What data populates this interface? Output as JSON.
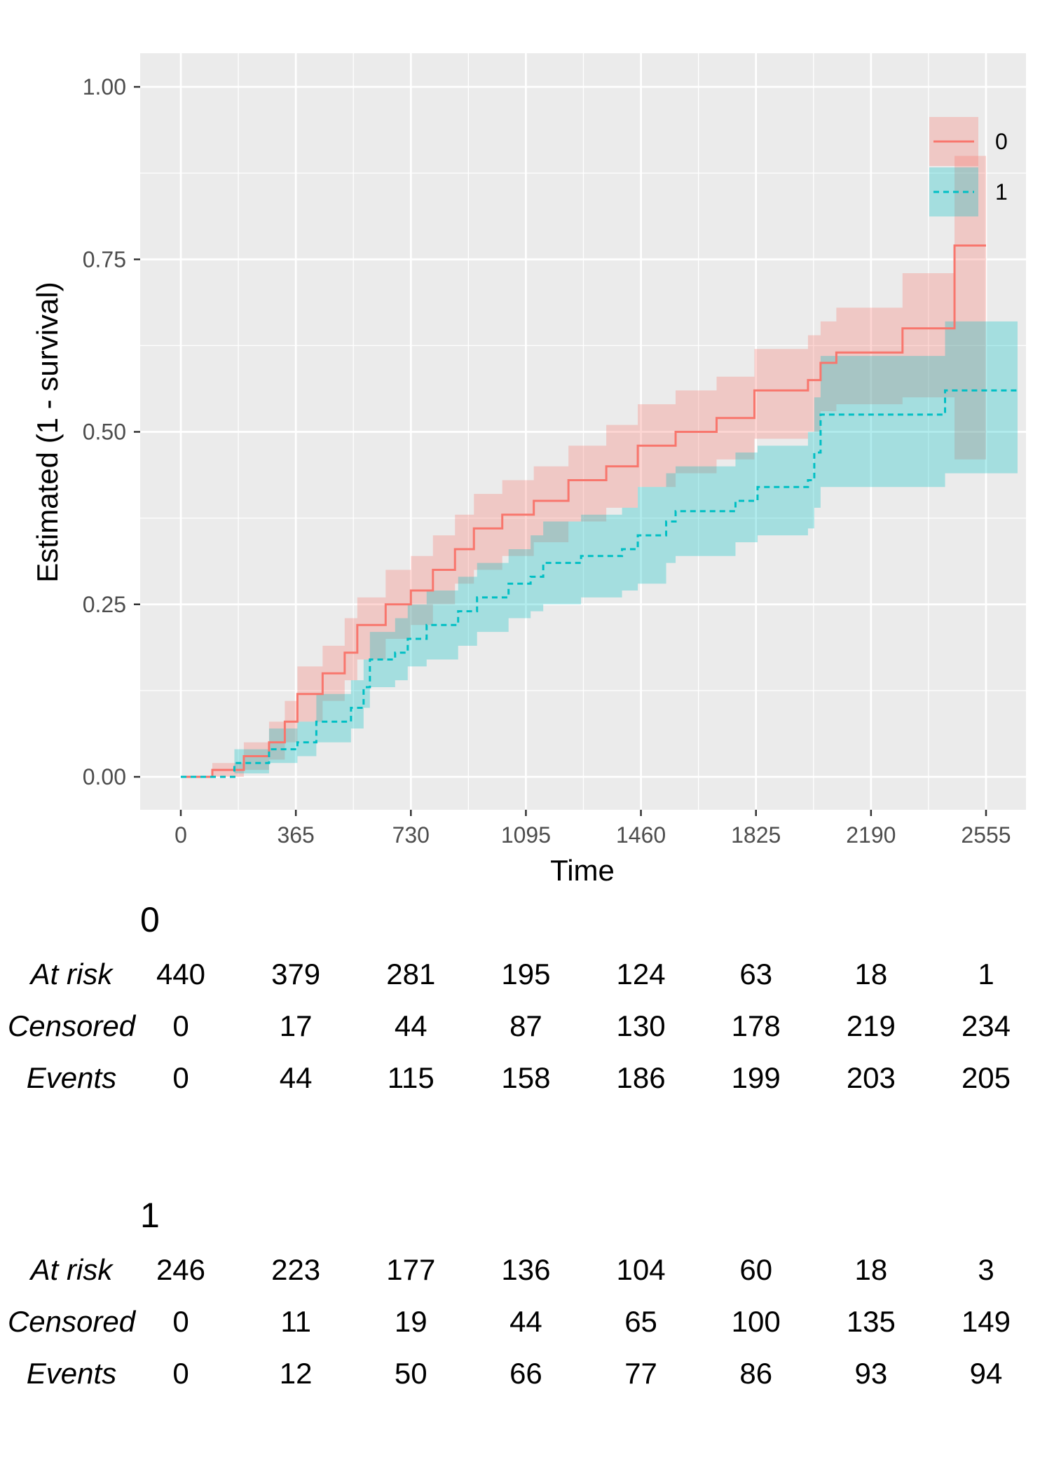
{
  "chart_data": {
    "type": "line",
    "subtype": "kaplan-meier cumulative incidence (step) with confidence ribbons",
    "xlabel": "Time",
    "ylabel": "Estimated (1 - survival)",
    "xlim": [
      -100,
      2690
    ],
    "ylim": [
      -0.05,
      1.05
    ],
    "x_ticks": [
      0,
      365,
      730,
      1095,
      1460,
      1825,
      2190,
      2555
    ],
    "x_tick_labels": [
      "0",
      "365",
      "730",
      "1095",
      "1460",
      "1825",
      "2190",
      "2555"
    ],
    "y_ticks": [
      0,
      0.25,
      0.5,
      0.75,
      1.0
    ],
    "y_tick_labels": [
      "0.00",
      "0.25",
      "0.50",
      "0.75",
      "1.00"
    ],
    "grid": true,
    "background": "#EBEBEB",
    "legend_position": "top-right",
    "series": [
      {
        "name": "0",
        "color": "#F8766D",
        "linetype": "solid",
        "end_time": 2555,
        "time": [
          0,
          100,
          200,
          280,
          330,
          370,
          450,
          520,
          560,
          650,
          730,
          800,
          870,
          930,
          1020,
          1120,
          1230,
          1350,
          1450,
          1570,
          1700,
          1820,
          1990,
          2030,
          2080,
          2290,
          2455
        ],
        "estimate": [
          0,
          0.01,
          0.03,
          0.05,
          0.08,
          0.12,
          0.15,
          0.18,
          0.22,
          0.25,
          0.27,
          0.3,
          0.33,
          0.36,
          0.38,
          0.4,
          0.43,
          0.45,
          0.48,
          0.5,
          0.52,
          0.56,
          0.575,
          0.6,
          0.615,
          0.65,
          0.77
        ],
        "lower": [
          0,
          0,
          0.01,
          0.025,
          0.05,
          0.08,
          0.11,
          0.14,
          0.17,
          0.2,
          0.22,
          0.25,
          0.28,
          0.3,
          0.32,
          0.34,
          0.37,
          0.39,
          0.42,
          0.44,
          0.46,
          0.49,
          0.5,
          0.53,
          0.54,
          0.55,
          0.46
        ],
        "upper": [
          0,
          0.02,
          0.05,
          0.08,
          0.11,
          0.16,
          0.19,
          0.23,
          0.26,
          0.3,
          0.32,
          0.35,
          0.38,
          0.41,
          0.43,
          0.45,
          0.48,
          0.51,
          0.54,
          0.56,
          0.58,
          0.62,
          0.64,
          0.66,
          0.68,
          0.73,
          0.9
        ]
      },
      {
        "name": "1",
        "color": "#00BFC4",
        "linetype": "dashed",
        "end_time": 2655,
        "time": [
          0,
          170,
          280,
          370,
          430,
          540,
          580,
          600,
          680,
          720,
          780,
          880,
          940,
          1040,
          1110,
          1150,
          1270,
          1400,
          1450,
          1540,
          1570,
          1760,
          1830,
          1990,
          2010,
          2030,
          2425
        ],
        "estimate": [
          0,
          0.02,
          0.04,
          0.05,
          0.08,
          0.1,
          0.13,
          0.17,
          0.18,
          0.2,
          0.22,
          0.24,
          0.26,
          0.28,
          0.29,
          0.31,
          0.32,
          0.33,
          0.35,
          0.37,
          0.385,
          0.4,
          0.42,
          0.43,
          0.47,
          0.525,
          0.56
        ],
        "lower": [
          0,
          0.005,
          0.02,
          0.03,
          0.05,
          0.07,
          0.1,
          0.13,
          0.14,
          0.16,
          0.17,
          0.19,
          0.21,
          0.23,
          0.24,
          0.25,
          0.26,
          0.27,
          0.28,
          0.31,
          0.32,
          0.34,
          0.35,
          0.36,
          0.39,
          0.42,
          0.44
        ],
        "upper": [
          0,
          0.04,
          0.07,
          0.08,
          0.12,
          0.14,
          0.17,
          0.21,
          0.23,
          0.25,
          0.27,
          0.29,
          0.31,
          0.33,
          0.35,
          0.37,
          0.38,
          0.39,
          0.42,
          0.44,
          0.45,
          0.47,
          0.48,
          0.5,
          0.55,
          0.61,
          0.66
        ]
      }
    ],
    "risk_table": {
      "row_labels": [
        "At risk",
        "Censored",
        "Events"
      ],
      "groups": [
        {
          "name": "0",
          "rows": [
            [
              "440",
              "379",
              "281",
              "195",
              "124",
              "63",
              "18",
              "1"
            ],
            [
              "0",
              "17",
              "44",
              "87",
              "130",
              "178",
              "219",
              "234"
            ],
            [
              "0",
              "44",
              "115",
              "158",
              "186",
              "199",
              "203",
              "205"
            ]
          ]
        },
        {
          "name": "1",
          "rows": [
            [
              "246",
              "223",
              "177",
              "136",
              "104",
              "60",
              "18",
              "3"
            ],
            [
              "0",
              "11",
              "19",
              "44",
              "65",
              "100",
              "135",
              "149"
            ],
            [
              "0",
              "12",
              "50",
              "66",
              "77",
              "86",
              "93",
              "94"
            ]
          ]
        }
      ]
    }
  }
}
